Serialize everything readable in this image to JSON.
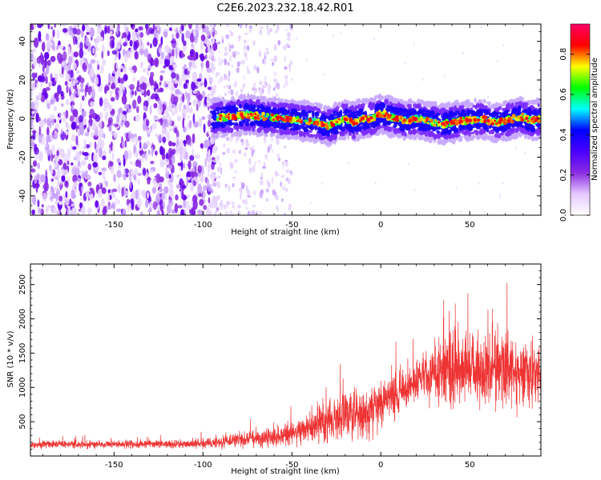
{
  "figure": {
    "title": "C2E6.2023.232.18.42.R01"
  },
  "chart_data": [
    {
      "type": "heatmap",
      "title": "C2E6.2023.232.18.42.R01",
      "xlabel": "Height of straight line (km)",
      "ylabel": "Frequency (Hz)",
      "xlim": [
        -197,
        90
      ],
      "ylim": [
        -50,
        49
      ],
      "xticks": [
        -150,
        -100,
        -50,
        0,
        50
      ],
      "xtick_labels": [
        "-150",
        "-100",
        "-50",
        "0",
        "50"
      ],
      "yticks": [
        -40,
        -20,
        0,
        20,
        40
      ],
      "ytick_labels": [
        "-40",
        "-20",
        "0",
        "20",
        "40"
      ],
      "colorbar": {
        "label": "Normalized spectral amplitude",
        "range": [
          0,
          0.95
        ],
        "ticks": [
          0,
          0.2,
          0.4,
          0.6,
          0.8
        ],
        "tick_labels": [
          "0.0",
          "0.2",
          "0.4",
          "0.6",
          "0.8"
        ],
        "colormap": [
          "#ffffff",
          "#e6c8ff",
          "#8a2be2",
          "#4b00ff",
          "#0000ff",
          "#00ffff",
          "#00ff00",
          "#ffff00",
          "#ff0000",
          "#ff0066"
        ]
      },
      "ridge": {
        "x": [
          -95,
          -85,
          -75,
          -65,
          -55,
          -45,
          -35,
          -30,
          -25,
          -20,
          -15,
          -10,
          -5,
          0,
          5,
          10,
          15,
          20,
          25,
          30,
          35,
          40,
          45,
          50,
          55,
          60,
          65,
          70,
          75,
          80,
          85,
          90
        ],
        "y": [
          0,
          1,
          2,
          1,
          0,
          -1,
          -2,
          -4,
          -2,
          0,
          -2,
          0,
          0,
          3,
          1,
          0,
          -1,
          0,
          -1,
          -2,
          -3,
          -2,
          -1,
          -1,
          0,
          -1,
          -2,
          -1,
          0,
          1,
          -1,
          0
        ]
      },
      "regions": [
        {
          "x_range": [
            -197,
            -97
          ],
          "description": "broadband noise, purple"
        },
        {
          "x_range": [
            -97,
            -50
          ],
          "description": "faint noise, lavender"
        },
        {
          "x_range": [
            -95,
            90
          ],
          "description": "signal band near 0 Hz"
        }
      ]
    },
    {
      "type": "line",
      "xlabel": "Height of straight line (km)",
      "ylabel": "SNR (10 * v/v)",
      "xlim": [
        -197,
        90
      ],
      "ylim": [
        0,
        2800
      ],
      "xticks": [
        -150,
        -100,
        -50,
        0,
        50
      ],
      "xtick_labels": [
        "-150",
        "-100",
        "-50",
        "0",
        "50"
      ],
      "yticks": [
        500,
        1000,
        1500,
        2000,
        2500
      ],
      "ytick_labels": [
        "500",
        "1000",
        "1500",
        "2000",
        "2500"
      ],
      "color": "#ee3333",
      "envelope": {
        "x": [
          -197,
          -150,
          -110,
          -90,
          -80,
          -70,
          -60,
          -50,
          -40,
          -30,
          -20,
          -10,
          0,
          10,
          15,
          20,
          25,
          30,
          35,
          40,
          50,
          60,
          70,
          80,
          90
        ],
        "mean": [
          170,
          170,
          175,
          200,
          230,
          260,
          280,
          320,
          420,
          520,
          580,
          620,
          760,
          900,
          1000,
          1120,
          1180,
          1220,
          1250,
          1270,
          1300,
          1270,
          1250,
          1250,
          1270
        ],
        "amplitude": [
          90,
          90,
          95,
          130,
          180,
          230,
          260,
          300,
          450,
          520,
          560,
          620,
          600,
          560,
          520,
          520,
          600,
          700,
          800,
          850,
          850,
          900,
          950,
          900,
          800
        ]
      }
    }
  ]
}
